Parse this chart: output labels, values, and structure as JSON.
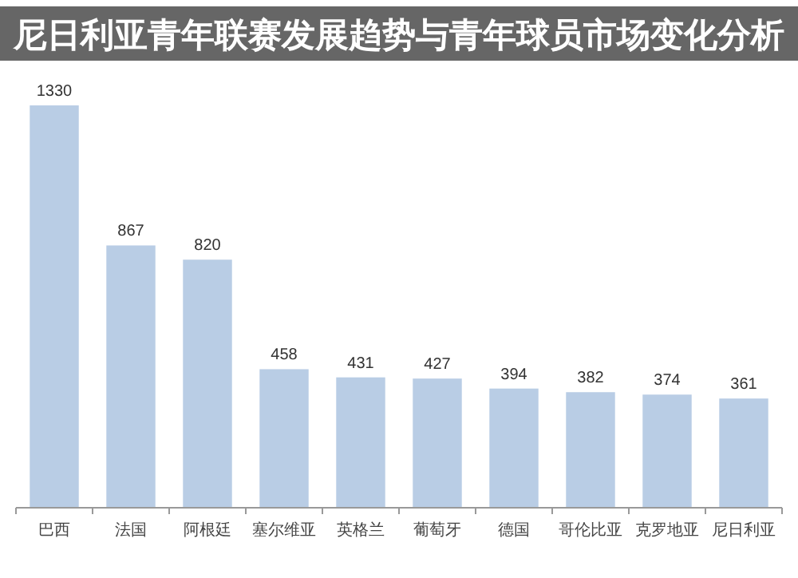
{
  "chart_data": {
    "type": "bar",
    "title": "尼日利亚青年联赛发展趋势与青年球员市场变化分析",
    "categories": [
      "巴西",
      "法国",
      "阿根廷",
      "塞尔维亚",
      "英格兰",
      "葡萄牙",
      "德国",
      "哥伦比亚",
      "克罗地亚",
      "尼日利亚"
    ],
    "values": [
      1330,
      867,
      820,
      458,
      431,
      427,
      394,
      382,
      374,
      361
    ],
    "color": "#b9cde5",
    "data_labels": true
  }
}
